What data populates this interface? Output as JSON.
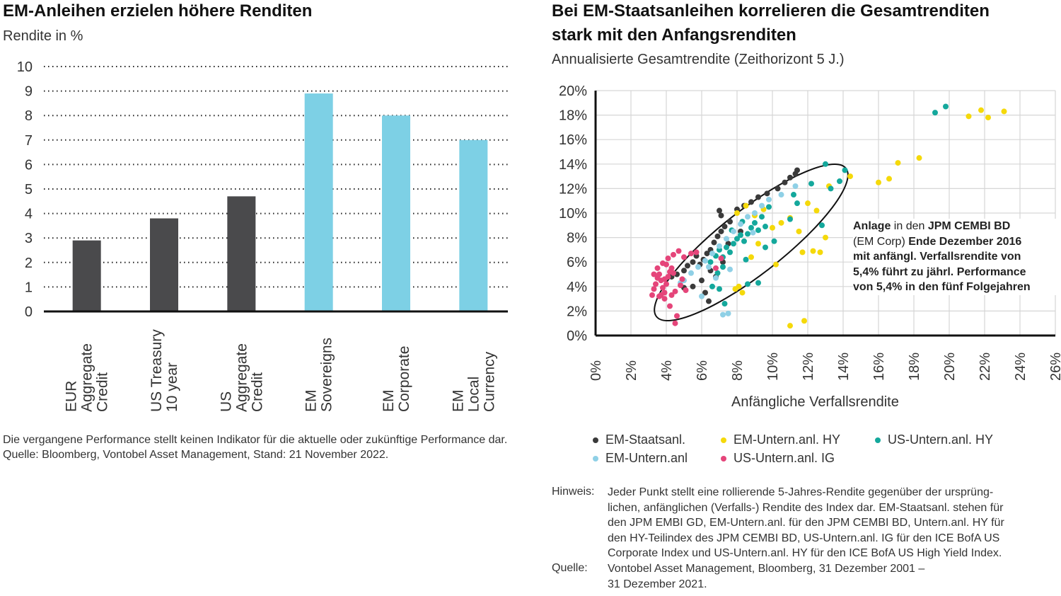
{
  "left": {
    "title": "EM-Anleihen erzielen höhere Renditen",
    "subtitle": "Rendite in %",
    "footnote_line1": "Die vergangene Performance stellt keinen Indikator für die aktuelle oder zukünftige Performance dar.",
    "footnote_line2": "Quelle: Bloomberg, Vontobel Asset Management, Stand: 21 November 2022."
  },
  "right": {
    "title_line1": "Bei EM-Staatsanleihen korrelieren die Gesamtrenditen",
    "title_line2": "stark mit den Anfangsrenditen",
    "subtitle": "Annualisierte Gesamtrendite (Zeithorizont 5 J.)",
    "xlabel": "Anfängliche Verfallsrendite",
    "annotation": {
      "l1a": "Anlage",
      "l1b": " in den ",
      "l1c": "JPM CEMBI BD",
      "l2a": "(EM Corp) ",
      "l2b": "Ende Dezember 2016",
      "l3": "mit anfängl. Verfallsrendite von",
      "l4": "5,4% führt zu jährl. Performance",
      "l5": "von 5,4% in den fünf Folgejahren"
    },
    "note_label": "Hinweis:",
    "note_lines": [
      "Jeder Punkt stellt eine rollierende 5-Jahres-Rendite gegenüber der ursprüng-",
      "lichen, anfänglichen (Verfalls-) Rendite des Index dar. EM-Staatsanl. stehen für",
      "den JPM EMBI GD, EM-Untern.anl. für den JPM CEMBI BD, Untern.anl. HY für",
      "den HY-Teilindex des JPM CEMBI BD, US-Untern.anl. IG für den ICE BofA US",
      "Corporate Index und US-Untern.anl. HY für den ICE BofA US High Yield Index."
    ],
    "source_label": "Quelle:",
    "source_lines": [
      "Vontobel Asset Management, Bloomberg, 31 Dezember 2001 –",
      "31 Dezember 2021."
    ]
  },
  "chart_data": [
    {
      "type": "bar",
      "title": "EM-Anleihen erzielen höhere Renditen",
      "ylabel": "Rendite in %",
      "categories": [
        "EUR Aggregate Credit",
        "US Treasury 10 year",
        "US Aggregate Credit",
        "EM Sovereigns",
        "EM Corporate",
        "EM Local Currency"
      ],
      "category_lines": [
        [
          "EUR",
          "Aggregate",
          "Credit"
        ],
        [
          "US Treasury",
          "10 year"
        ],
        [
          "US",
          "Aggregate",
          "Credit"
        ],
        [
          "EM",
          "Sovereigns"
        ],
        [
          "EM",
          "Corporate"
        ],
        [
          "EM",
          "Local",
          "Currency"
        ]
      ],
      "values": [
        2.9,
        3.8,
        4.7,
        8.9,
        8.0,
        7.0
      ],
      "bar_colors": [
        "#4a4a4c",
        "#4a4a4c",
        "#4a4a4c",
        "#7dd0e5",
        "#7dd0e5",
        "#7dd0e5"
      ],
      "ylim": [
        0,
        10
      ],
      "yticks": [
        "0",
        "1",
        "2",
        "3",
        "4",
        "5",
        "6",
        "7",
        "8",
        "9",
        "10"
      ],
      "grid": "dotted horizontal"
    },
    {
      "type": "scatter",
      "title": "Bei EM-Staatsanleihen korrelieren die Gesamtrenditen stark mit den Anfangsrenditen",
      "subtitle": "Annualisierte Gesamtrendite (Zeithorizont 5 J.)",
      "xlabel": "Anfängliche Verfallsrendite",
      "ylabel": "",
      "xlim": [
        0,
        26
      ],
      "ylim": [
        0,
        20
      ],
      "xticks": [
        "0%",
        "2%",
        "4%",
        "6%",
        "8%",
        "10%",
        "12%",
        "14%",
        "16%",
        "18%",
        "20%",
        "22%",
        "24%",
        "26%"
      ],
      "yticks": [
        "0%",
        "2%",
        "4%",
        "6%",
        "8%",
        "10%",
        "12%",
        "14%",
        "16%",
        "18%",
        "20%"
      ],
      "grid": "solid, light",
      "legend_position": "bottom",
      "series": [
        {
          "name": "EM-Staatsanl.",
          "color": "#3a3a3a",
          "points": [
            [
              4.3,
              4.8
            ],
            [
              4.6,
              5.0
            ],
            [
              5.0,
              5.3
            ],
            [
              5.2,
              5.7
            ],
            [
              5.5,
              6.0
            ],
            [
              5.7,
              6.5
            ],
            [
              5.9,
              5.8
            ],
            [
              6.1,
              6.2
            ],
            [
              6.3,
              6.7
            ],
            [
              6.5,
              7.0
            ],
            [
              6.7,
              7.6
            ],
            [
              6.9,
              8.1
            ],
            [
              7.1,
              8.5
            ],
            [
              7.3,
              8.9
            ],
            [
              7.6,
              9.3
            ],
            [
              7.1,
              9.8
            ],
            [
              7.0,
              10.2
            ],
            [
              8.0,
              10.3
            ],
            [
              8.4,
              10.6
            ],
            [
              8.8,
              10.9
            ],
            [
              9.2,
              11.3
            ],
            [
              9.7,
              11.6
            ],
            [
              10.3,
              12.0
            ],
            [
              10.7,
              12.5
            ],
            [
              11.0,
              12.9
            ],
            [
              11.3,
              13.2
            ],
            [
              11.4,
              13.5
            ],
            [
              6.2,
              3.5
            ],
            [
              5.5,
              4.0
            ],
            [
              6.8,
              4.8
            ],
            [
              7.2,
              6.0
            ],
            [
              6.0,
              4.5
            ],
            [
              6.5,
              5.3
            ],
            [
              7.5,
              7.5
            ],
            [
              8.2,
              8.5
            ],
            [
              6.4,
              2.8
            ],
            [
              5.0,
              3.9
            ]
          ]
        },
        {
          "name": "EM-Untern.anl. HY",
          "color": "#f5d90a",
          "points": [
            [
              8.0,
              10.0
            ],
            [
              8.5,
              10.6
            ],
            [
              9.0,
              9.8
            ],
            [
              9.5,
              10.3
            ],
            [
              10.0,
              8.8
            ],
            [
              10.5,
              9.2
            ],
            [
              11.0,
              9.6
            ],
            [
              11.5,
              8.5
            ],
            [
              12.0,
              10.8
            ],
            [
              12.5,
              10.2
            ],
            [
              13.0,
              8.0
            ],
            [
              11.7,
              6.8
            ],
            [
              12.3,
              6.9
            ],
            [
              12.7,
              6.8
            ],
            [
              10.2,
              5.8
            ],
            [
              8.1,
              4.0
            ],
            [
              8.3,
              3.5
            ],
            [
              7.9,
              3.8
            ],
            [
              11.0,
              0.8
            ],
            [
              11.8,
              1.2
            ],
            [
              13.2,
              12.2
            ],
            [
              14.4,
              13.0
            ],
            [
              16.0,
              12.5
            ],
            [
              16.6,
              12.8
            ],
            [
              17.1,
              14.1
            ],
            [
              18.3,
              14.5
            ],
            [
              21.1,
              17.9
            ],
            [
              21.8,
              18.4
            ],
            [
              22.2,
              17.8
            ],
            [
              23.1,
              18.3
            ],
            [
              9.2,
              7.5
            ],
            [
              8.8,
              6.4
            ]
          ]
        },
        {
          "name": "US-Untern.anl. HY",
          "color": "#14a89c",
          "points": [
            [
              6.5,
              6.0
            ],
            [
              6.8,
              6.5
            ],
            [
              7.0,
              7.0
            ],
            [
              7.2,
              6.4
            ],
            [
              7.4,
              7.2
            ],
            [
              7.6,
              6.8
            ],
            [
              7.8,
              7.5
            ],
            [
              8.0,
              7.9
            ],
            [
              8.2,
              8.2
            ],
            [
              8.4,
              7.7
            ],
            [
              8.6,
              8.3
            ],
            [
              8.8,
              8.8
            ],
            [
              9.0,
              9.2
            ],
            [
              9.2,
              8.6
            ],
            [
              9.4,
              9.7
            ],
            [
              9.6,
              8.9
            ],
            [
              9.8,
              10.5
            ],
            [
              8.3,
              9.3
            ],
            [
              7.7,
              8.6
            ],
            [
              7.2,
              5.6
            ],
            [
              6.9,
              5.1
            ],
            [
              7.0,
              3.8
            ],
            [
              6.6,
              4.0
            ],
            [
              7.3,
              2.6
            ],
            [
              8.6,
              4.2
            ],
            [
              9.2,
              4.3
            ],
            [
              11.0,
              9.5
            ],
            [
              11.4,
              10.8
            ],
            [
              11.2,
              11.5
            ],
            [
              12.2,
              12.4
            ],
            [
              13.0,
              14.0
            ],
            [
              13.3,
              12.0
            ],
            [
              13.8,
              12.6
            ],
            [
              14.1,
              13.5
            ],
            [
              12.8,
              9.0
            ],
            [
              19.2,
              18.2
            ],
            [
              19.8,
              18.7
            ],
            [
              8.5,
              6.2
            ],
            [
              9.6,
              7.2
            ],
            [
              10.1,
              7.7
            ]
          ]
        },
        {
          "name": "EM-Untern.anl",
          "color": "#8fd0e6",
          "points": [
            [
              5.0,
              4.5
            ],
            [
              5.4,
              5.1
            ],
            [
              5.8,
              5.6
            ],
            [
              6.2,
              6.1
            ],
            [
              6.6,
              6.7
            ],
            [
              7.0,
              7.3
            ],
            [
              7.4,
              7.9
            ],
            [
              7.8,
              8.5
            ],
            [
              8.2,
              9.1
            ],
            [
              8.6,
              9.7
            ],
            [
              9.0,
              10.0
            ],
            [
              9.4,
              10.6
            ],
            [
              9.8,
              11.1
            ],
            [
              10.5,
              11.5
            ],
            [
              11.3,
              12.2
            ],
            [
              6.8,
              4.7
            ],
            [
              7.6,
              5.4
            ],
            [
              7.2,
              1.7
            ],
            [
              7.5,
              1.8
            ],
            [
              6.0,
              3.2
            ],
            [
              4.8,
              4.3
            ],
            [
              8.9,
              8.4
            ],
            [
              6.4,
              5.6
            ]
          ]
        },
        {
          "name": "US-Untern.anl. IG",
          "color": "#e5457a",
          "points": [
            [
              3.2,
              3.3
            ],
            [
              3.3,
              3.8
            ],
            [
              3.4,
              4.2
            ],
            [
              3.5,
              4.7
            ],
            [
              3.6,
              5.0
            ],
            [
              3.7,
              4.5
            ],
            [
              3.8,
              3.9
            ],
            [
              3.9,
              3.5
            ],
            [
              4.0,
              4.2
            ],
            [
              4.1,
              4.8
            ],
            [
              4.2,
              5.2
            ],
            [
              4.3,
              5.5
            ],
            [
              4.4,
              5.1
            ],
            [
              3.5,
              5.5
            ],
            [
              3.8,
              5.9
            ],
            [
              4.1,
              6.3
            ],
            [
              4.4,
              6.6
            ],
            [
              4.7,
              6.9
            ],
            [
              5.0,
              6.4
            ],
            [
              5.4,
              6.7
            ],
            [
              5.7,
              6.8
            ],
            [
              3.6,
              3.2
            ],
            [
              3.9,
              3.0
            ],
            [
              4.2,
              2.4
            ],
            [
              4.5,
              3.6
            ],
            [
              4.8,
              4.1
            ],
            [
              5.1,
              3.7
            ],
            [
              3.3,
              5.0
            ],
            [
              3.7,
              3.3
            ],
            [
              4.6,
              1.6
            ],
            [
              4.5,
              1.0
            ],
            [
              4.0,
              5.8
            ],
            [
              3.9,
              4.6
            ],
            [
              4.3,
              3.3
            ],
            [
              4.9,
              4.6
            ],
            [
              6.8,
              5.5
            ],
            [
              7.1,
              6.3
            ]
          ]
        }
      ],
      "highlight_ellipse": "around EM-Staatsanl. points",
      "annotation": "Anlage in den JPM CEMBI BD (EM Corp) Ende Dezember 2016 mit anfängl. Verfallsrendite von 5,4% führt zu jährl. Performance von 5,4% in den fünf Folgejahren"
    }
  ]
}
